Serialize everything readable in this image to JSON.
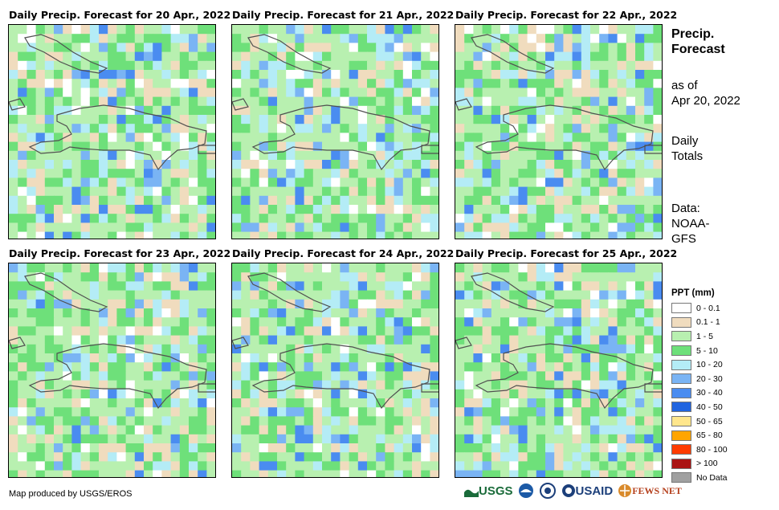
{
  "panels": [
    {
      "title": "Daily Precip. Forecast for 20 Apr., 2022",
      "seed": 20
    },
    {
      "title": "Daily Precip. Forecast for 21 Apr., 2022",
      "seed": 21
    },
    {
      "title": "Daily Precip. Forecast for 22 Apr., 2022",
      "seed": 22
    },
    {
      "title": "Daily Precip. Forecast for 23 Apr., 2022",
      "seed": 23
    },
    {
      "title": "Daily Precip. Forecast for 24 Apr., 2022",
      "seed": 24
    },
    {
      "title": "Daily Precip. Forecast for 25 Apr., 2022",
      "seed": 25
    }
  ],
  "side": {
    "title_line1": "Precip.",
    "title_line2": "Forecast",
    "asof_line1": "as of",
    "asof_line2": "Apr 20, 2022",
    "totals_line1": "Daily",
    "totals_line2": "Totals",
    "data_line1": "Data:",
    "data_line2": "NOAA-",
    "data_line3": "GFS"
  },
  "legend": {
    "title": "PPT (mm)",
    "items": [
      {
        "label": "0 - 0.1",
        "color": "#ffffff"
      },
      {
        "label": "0.1 - 1",
        "color": "#f0dcbe"
      },
      {
        "label": "1 - 5",
        "color": "#b8f0b0"
      },
      {
        "label": "5 - 10",
        "color": "#6ee07a"
      },
      {
        "label": "10 - 20",
        "color": "#b4ecf6"
      },
      {
        "label": "20 - 30",
        "color": "#7ab4f4"
      },
      {
        "label": "30 - 40",
        "color": "#4a8cf0"
      },
      {
        "label": "40 - 50",
        "color": "#2064e0"
      },
      {
        "label": "50 - 65",
        "color": "#ffe68c"
      },
      {
        "label": "65 - 80",
        "color": "#ffa500"
      },
      {
        "label": "80 - 100",
        "color": "#ff3c00"
      },
      {
        "label": "> 100",
        "color": "#aa1414"
      },
      {
        "label": "No Data",
        "color": "#a0a0a0"
      }
    ]
  },
  "footer": {
    "credit": "Map produced by USGS/EROS"
  },
  "logos": {
    "usgs": "USGS",
    "usaid": "USAID",
    "fewsnet": "FEWS NET"
  }
}
